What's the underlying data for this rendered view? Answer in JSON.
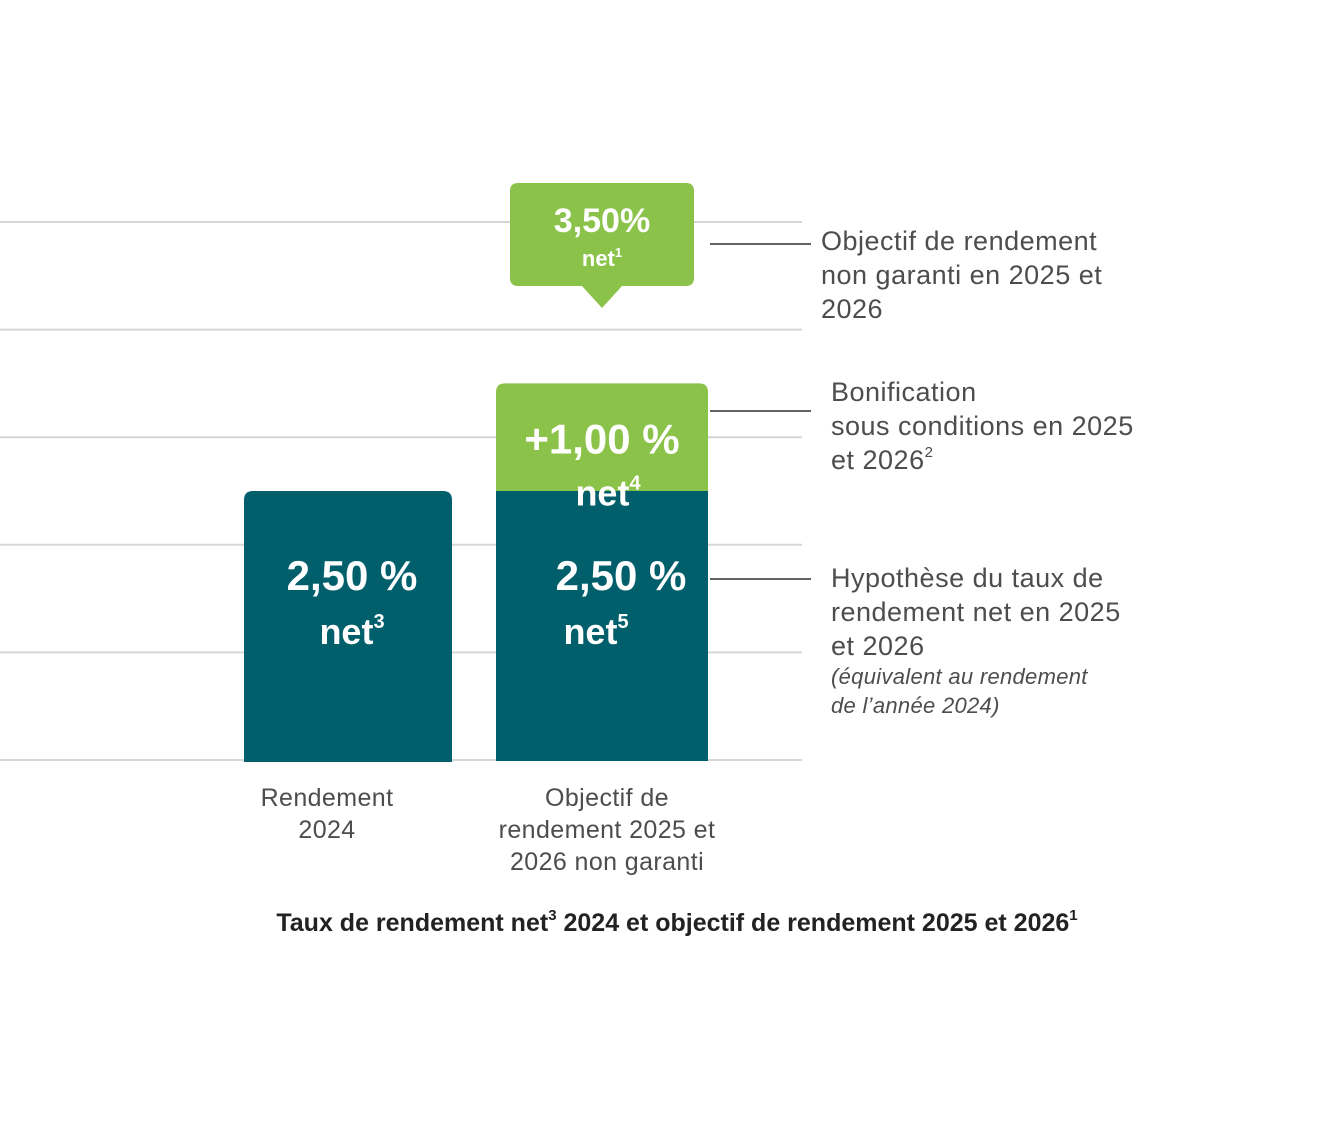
{
  "chart_data": {
    "type": "bar",
    "title": "Taux de rendement net³ 2024 et objectif de rendement 2025 et 2026¹",
    "title_parts": {
      "a": "Taux de rendement net",
      "a_sup": "3",
      "b": " 2024 et objectif de rendement 2025 et 2026",
      "b_sup": "1"
    },
    "categories": [
      {
        "lines": [
          "Rendement",
          "2024"
        ]
      },
      {
        "lines": [
          "Objectif de",
          "rendement 2025 et",
          "2026 non garanti"
        ]
      }
    ],
    "ylim": [
      0,
      5
    ],
    "grid": true,
    "series": [
      {
        "name": "Hypothèse du taux de rendement net en 2025 et 2026",
        "values": [
          2.5,
          2.5
        ],
        "labels": [
          {
            "value": "2,50 %",
            "suffix": "net",
            "sup": "3"
          },
          {
            "value": "2,50 %",
            "suffix": "net",
            "sup": "5"
          }
        ]
      },
      {
        "name": "Bonification sous conditions en 2025 et 2026",
        "values": [
          0,
          1.0
        ],
        "labels": [
          null,
          {
            "value": "+1,00 %",
            "suffix": "net",
            "sup": "4"
          }
        ]
      }
    ],
    "total_callout": {
      "value": "3,50%",
      "suffix": "net",
      "sup": "1"
    },
    "annotations": [
      {
        "lines": [
          "Objectif de rendement",
          "non garanti en 2025 et",
          "2026"
        ]
      },
      {
        "lines": [
          "Bonification",
          "sous conditions en 2025",
          "et 2026"
        ],
        "sup": "2"
      },
      {
        "lines": [
          "Hypothèse du taux de",
          "rendement net en 2025",
          "et 2026"
        ],
        "note_lines": [
          "(équivalent au rendement",
          "de l’année 2024)"
        ]
      }
    ],
    "colors": {
      "base": "#005f6b",
      "bonus": "#8bc34a",
      "grid": "#d6d6d6",
      "leader": "#4d4d4d"
    }
  }
}
